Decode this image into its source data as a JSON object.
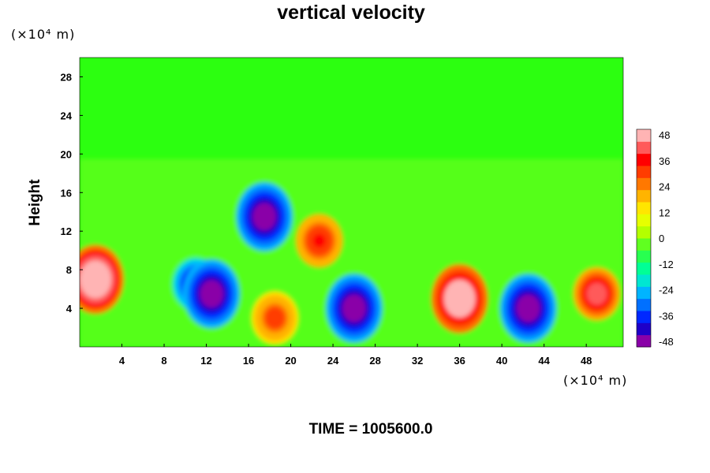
{
  "chart_data": {
    "type": "heatmap",
    "title": "vertical velocity",
    "ylabel": "Height",
    "y_unit": "(×10⁴ m)",
    "x_unit": "(×10⁴ m)",
    "xlim": [
      0,
      51.5
    ],
    "ylim": [
      0,
      30
    ],
    "x_ticks": [
      4,
      8,
      12,
      16,
      20,
      24,
      28,
      32,
      36,
      40,
      44,
      48
    ],
    "y_ticks": [
      4,
      8,
      12,
      16,
      20,
      24,
      28
    ],
    "x_tick_labels": [
      "4",
      "8",
      "12",
      "16",
      "20",
      "24",
      "28",
      "32",
      "36",
      "40",
      "44",
      "48"
    ],
    "y_tick_labels": [
      "4",
      "8",
      "12",
      "16",
      "20",
      "24",
      "28"
    ],
    "colorbar": {
      "min": -48,
      "max": 48,
      "tick_labels": [
        "48",
        "36",
        "24",
        "12",
        "0",
        "-12",
        "-24",
        "-36",
        "-48"
      ],
      "colors": [
        "#8a00a8",
        "#1e00c8",
        "#0028ff",
        "#0070ff",
        "#00b4ff",
        "#00e6d2",
        "#00ff96",
        "#28ff50",
        "#60ff20",
        "#b4ff00",
        "#e6ff00",
        "#ffe600",
        "#ffb400",
        "#ff7800",
        "#ff3c00",
        "#ff0000",
        "#ff5a5a",
        "#ffb4b4"
      ]
    },
    "features": [
      {
        "x": 1.5,
        "y": 7,
        "w": 58
      },
      {
        "x": 11,
        "y": 6.5,
        "w": -42
      },
      {
        "x": 12.5,
        "y": 5.5,
        "w": -50
      },
      {
        "x": 17.5,
        "y": 13.5,
        "w": -50
      },
      {
        "x": 18.5,
        "y": 3,
        "w": 30
      },
      {
        "x": 22.7,
        "y": 11,
        "w": 35
      },
      {
        "x": 26,
        "y": 4,
        "w": -50
      },
      {
        "x": 36,
        "y": 5,
        "w": 55
      },
      {
        "x": 42.5,
        "y": 4,
        "w": -52
      },
      {
        "x": 49,
        "y": 5.5,
        "w": 42
      }
    ],
    "annotation": "TIME = 1005600.0"
  }
}
